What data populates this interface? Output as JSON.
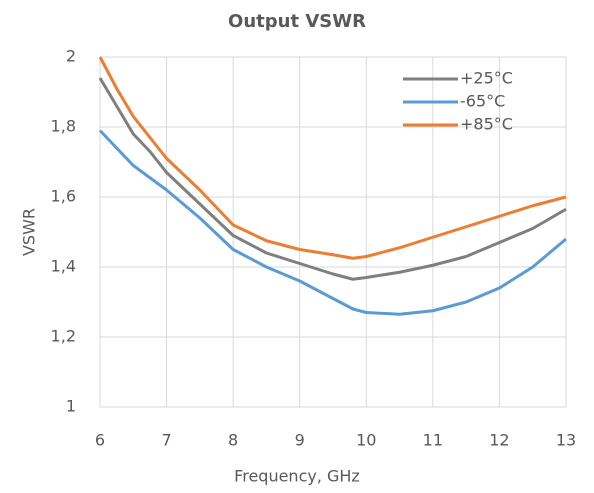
{
  "chart_data": {
    "type": "line",
    "title": "Output VSWR",
    "xlabel": "Frequency, GHz",
    "ylabel": "VSWR",
    "x": [
      6,
      6.25,
      6.5,
      6.75,
      7,
      7.5,
      8,
      8.5,
      9,
      9.5,
      9.8,
      10,
      10.5,
      11,
      11.5,
      12,
      12.5,
      13
    ],
    "series": [
      {
        "name": "+25°C",
        "color": "#7f7f7f",
        "values": [
          1.94,
          1.86,
          1.78,
          1.73,
          1.67,
          1.58,
          1.49,
          1.44,
          1.41,
          1.38,
          1.365,
          1.37,
          1.385,
          1.405,
          1.43,
          1.47,
          1.51,
          1.565
        ]
      },
      {
        "name": "-65°C",
        "color": "#5b9bd5",
        "values": [
          1.79,
          1.74,
          1.69,
          1.655,
          1.62,
          1.54,
          1.45,
          1.4,
          1.36,
          1.31,
          1.28,
          1.27,
          1.265,
          1.275,
          1.3,
          1.34,
          1.4,
          1.48
        ]
      },
      {
        "name": "+85°C",
        "color": "#ed7d31",
        "values": [
          2.0,
          1.91,
          1.83,
          1.77,
          1.71,
          1.62,
          1.52,
          1.475,
          1.45,
          1.435,
          1.425,
          1.43,
          1.455,
          1.485,
          1.515,
          1.545,
          1.575,
          1.6
        ]
      }
    ],
    "xlim": [
      6,
      13
    ],
    "xticks": [
      6,
      7,
      8,
      9,
      10,
      11,
      12,
      13
    ],
    "ylim": [
      1,
      2
    ],
    "yticks": [
      1,
      {
        "value": 1.2,
        "label": "1,2"
      },
      {
        "value": 1.4,
        "label": "1,4"
      },
      {
        "value": 1.6,
        "label": "1,6"
      },
      {
        "value": 1.8,
        "label": "1,8"
      },
      2
    ],
    "grid": true,
    "legend": "upper right"
  }
}
